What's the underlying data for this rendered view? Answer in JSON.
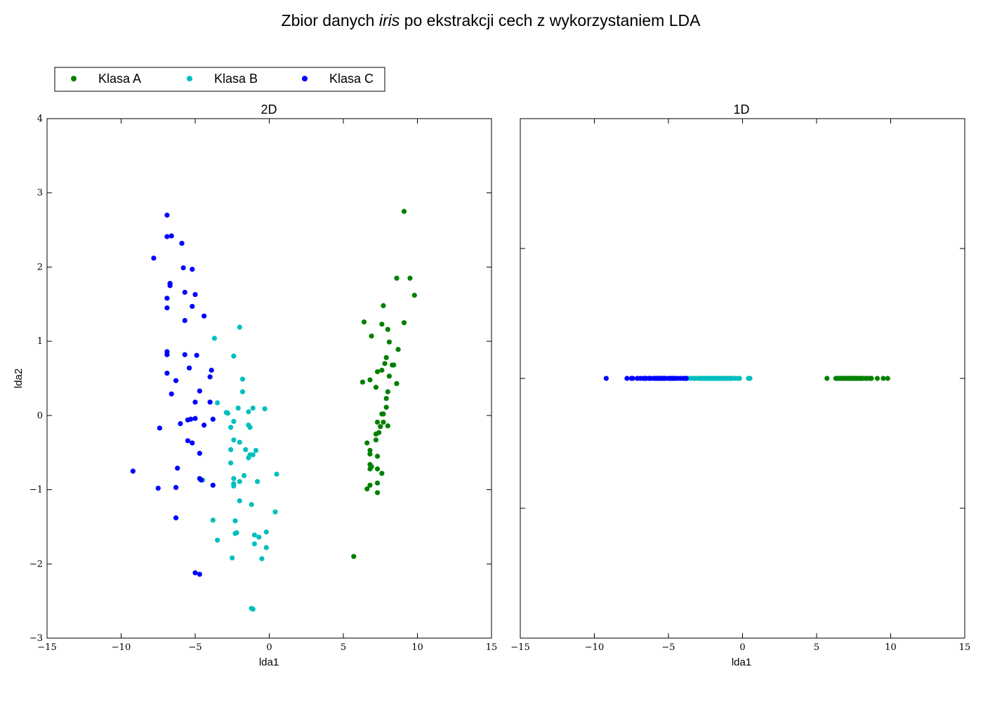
{
  "figure": {
    "title_prefix": "Zbior danych ",
    "title_italic": "iris",
    "title_suffix": " po ekstrakcji cech z wykorzystaniem LDA"
  },
  "legend": {
    "placement": "top-left, above plots",
    "entries": [
      {
        "label": "Klasa A",
        "color": "#008000"
      },
      {
        "label": "Klasa B",
        "color": "#00bfbf"
      },
      {
        "label": "Klasa C",
        "color": "#0000ff"
      }
    ]
  },
  "chart_data": [
    {
      "type": "scatter",
      "title": "2D",
      "xlabel": "lda1",
      "ylabel": "lda2",
      "xlim": [
        -15,
        15
      ],
      "ylim": [
        -3,
        4
      ],
      "xticks": [
        -15,
        -10,
        -5,
        0,
        5,
        10,
        15
      ],
      "yticks": [
        -3,
        -2,
        -1,
        0,
        1,
        2,
        3,
        4
      ],
      "grid": false,
      "series": [
        {
          "name": "Klasa A",
          "color": "#008000",
          "points": [
            [
              9.1,
              2.75
            ],
            [
              9.5,
              1.85
            ],
            [
              8.6,
              1.85
            ],
            [
              9.8,
              1.62
            ],
            [
              7.7,
              1.48
            ],
            [
              6.4,
              1.26
            ],
            [
              7.6,
              1.23
            ],
            [
              9.1,
              1.25
            ],
            [
              8.0,
              1.16
            ],
            [
              6.9,
              1.07
            ],
            [
              8.1,
              0.99
            ],
            [
              8.7,
              0.89
            ],
            [
              7.9,
              0.78
            ],
            [
              7.8,
              0.7
            ],
            [
              8.4,
              0.68
            ],
            [
              8.3,
              0.68
            ],
            [
              7.6,
              0.61
            ],
            [
              7.3,
              0.59
            ],
            [
              8.1,
              0.53
            ],
            [
              6.3,
              0.45
            ],
            [
              6.8,
              0.48
            ],
            [
              8.6,
              0.43
            ],
            [
              7.2,
              0.38
            ],
            [
              8.0,
              0.32
            ],
            [
              7.9,
              0.23
            ],
            [
              7.9,
              0.11
            ],
            [
              7.7,
              0.02
            ],
            [
              7.6,
              0.02
            ],
            [
              7.3,
              -0.09
            ],
            [
              7.7,
              -0.09
            ],
            [
              7.5,
              -0.15
            ],
            [
              8.0,
              -0.14
            ],
            [
              7.4,
              -0.23
            ],
            [
              7.2,
              -0.25
            ],
            [
              7.2,
              -0.33
            ],
            [
              6.6,
              -0.37
            ],
            [
              6.8,
              -0.47
            ],
            [
              6.8,
              -0.52
            ],
            [
              7.3,
              -0.55
            ],
            [
              6.8,
              -0.66
            ],
            [
              6.9,
              -0.69
            ],
            [
              6.8,
              -0.72
            ],
            [
              7.3,
              -0.72
            ],
            [
              7.6,
              -0.78
            ],
            [
              7.3,
              -0.91
            ],
            [
              6.8,
              -0.94
            ],
            [
              6.6,
              -0.99
            ],
            [
              7.3,
              -1.04
            ],
            [
              5.7,
              -1.9
            ]
          ]
        },
        {
          "name": "Klasa B",
          "color": "#00bfbf",
          "points": [
            [
              -2.0,
              1.19
            ],
            [
              -3.7,
              1.04
            ],
            [
              -2.4,
              0.8
            ],
            [
              -1.8,
              0.49
            ],
            [
              -1.8,
              0.32
            ],
            [
              -3.5,
              0.17
            ],
            [
              -2.1,
              0.1
            ],
            [
              -1.1,
              0.1
            ],
            [
              -0.3,
              0.09
            ],
            [
              -1.4,
              0.05
            ],
            [
              -2.9,
              0.04
            ],
            [
              -2.8,
              0.03
            ],
            [
              -2.4,
              -0.08
            ],
            [
              -1.4,
              -0.13
            ],
            [
              -2.6,
              -0.16
            ],
            [
              -1.3,
              -0.16
            ],
            [
              -2.4,
              -0.33
            ],
            [
              -2.0,
              -0.36
            ],
            [
              -2.6,
              -0.46
            ],
            [
              -1.6,
              -0.46
            ],
            [
              -0.9,
              -0.47
            ],
            [
              -1.3,
              -0.53
            ],
            [
              -1.1,
              -0.53
            ],
            [
              -1.4,
              -0.57
            ],
            [
              -2.6,
              -0.64
            ],
            [
              0.5,
              -0.79
            ],
            [
              -1.7,
              -0.81
            ],
            [
              -2.4,
              -0.85
            ],
            [
              -4.5,
              -0.87
            ],
            [
              -2.0,
              -0.89
            ],
            [
              -0.8,
              -0.89
            ],
            [
              -2.4,
              -0.92
            ],
            [
              -2.4,
              -0.95
            ],
            [
              -2.0,
              -1.15
            ],
            [
              -1.2,
              -1.2
            ],
            [
              0.4,
              -1.3
            ],
            [
              -3.8,
              -1.41
            ],
            [
              -2.3,
              -1.42
            ],
            [
              -0.2,
              -1.57
            ],
            [
              -2.2,
              -1.58
            ],
            [
              -2.3,
              -1.59
            ],
            [
              -1.0,
              -1.61
            ],
            [
              -0.7,
              -1.64
            ],
            [
              -3.5,
              -1.68
            ],
            [
              -1.0,
              -1.73
            ],
            [
              -0.2,
              -1.78
            ],
            [
              -2.5,
              -1.92
            ],
            [
              -0.5,
              -1.93
            ],
            [
              -1.2,
              -2.6
            ],
            [
              -1.1,
              -2.61
            ]
          ]
        },
        {
          "name": "Klasa C",
          "color": "#0000ff",
          "points": [
            [
              -6.9,
              2.7
            ],
            [
              -6.9,
              2.41
            ],
            [
              -6.6,
              2.42
            ],
            [
              -5.9,
              2.32
            ],
            [
              -7.8,
              2.12
            ],
            [
              -5.8,
              1.99
            ],
            [
              -5.2,
              1.97
            ],
            [
              -6.7,
              1.78
            ],
            [
              -6.7,
              1.75
            ],
            [
              -5.7,
              1.66
            ],
            [
              -5.0,
              1.63
            ],
            [
              -6.9,
              1.58
            ],
            [
              -5.2,
              1.47
            ],
            [
              -6.9,
              1.45
            ],
            [
              -4.4,
              1.34
            ],
            [
              -5.7,
              1.28
            ],
            [
              -6.9,
              0.86
            ],
            [
              -6.9,
              0.82
            ],
            [
              -5.7,
              0.82
            ],
            [
              -4.9,
              0.81
            ],
            [
              -3.9,
              0.61
            ],
            [
              -5.4,
              0.64
            ],
            [
              -6.9,
              0.57
            ],
            [
              -4.0,
              0.52
            ],
            [
              -6.3,
              0.47
            ],
            [
              -4.7,
              0.33
            ],
            [
              -6.6,
              0.29
            ],
            [
              -5.0,
              0.18
            ],
            [
              -4.0,
              0.18
            ],
            [
              -3.8,
              -0.05
            ],
            [
              -5.0,
              -0.04
            ],
            [
              -5.3,
              -0.05
            ],
            [
              -5.5,
              -0.06
            ],
            [
              -6.0,
              -0.11
            ],
            [
              -4.4,
              -0.13
            ],
            [
              -7.4,
              -0.17
            ],
            [
              -5.5,
              -0.34
            ],
            [
              -5.2,
              -0.37
            ],
            [
              -4.7,
              -0.51
            ],
            [
              -6.2,
              -0.71
            ],
            [
              -9.2,
              -0.75
            ],
            [
              -4.7,
              -0.85
            ],
            [
              -4.6,
              -0.87
            ],
            [
              -3.8,
              -0.94
            ],
            [
              -6.3,
              -0.97
            ],
            [
              -7.5,
              -0.98
            ],
            [
              -6.3,
              -1.38
            ],
            [
              -5.0,
              -2.12
            ],
            [
              -4.7,
              -2.14
            ]
          ]
        }
      ]
    },
    {
      "type": "scatter",
      "title": "1D",
      "xlabel": "lda1",
      "ylabel": "",
      "xlim": [
        -15,
        15
      ],
      "ylim": [
        -1,
        1
      ],
      "xticks": [
        -15,
        -10,
        -5,
        0,
        5,
        10,
        15
      ],
      "yticks": [
        -1,
        -0.5,
        0,
        0.5,
        1
      ],
      "ytick_labels_visible": false,
      "constant_y": 0,
      "grid": false,
      "series": [
        {
          "name": "Klasa A",
          "color": "#008000",
          "x": [
            9.8,
            9.5,
            9.1,
            8.6,
            8.6,
            8.7,
            8.4,
            8.3,
            8.1,
            8.1,
            8.0,
            8.0,
            7.9,
            7.9,
            7.8,
            7.7,
            7.7,
            7.6,
            7.6,
            7.6,
            7.5,
            7.4,
            7.3,
            7.3,
            7.3,
            7.3,
            7.3,
            7.2,
            7.2,
            6.9,
            6.9,
            6.8,
            6.8,
            6.8,
            6.8,
            6.8,
            6.6,
            6.6,
            6.4,
            6.3,
            5.7,
            7.0,
            7.1,
            6.5,
            6.7
          ]
        },
        {
          "name": "Klasa B",
          "color": "#00bfbf",
          "x": [
            0.5,
            0.4,
            -0.2,
            -0.3,
            -0.5,
            -0.7,
            -0.8,
            -0.9,
            -1.0,
            -1.1,
            -1.2,
            -1.3,
            -1.4,
            -1.6,
            -1.7,
            -1.8,
            -2.0,
            -2.1,
            -2.2,
            -2.3,
            -2.4,
            -2.5,
            -2.6,
            -2.8,
            -2.9,
            -3.5,
            -3.7,
            -3.8,
            -4.5,
            -3.2,
            -3.0,
            -1.5,
            -1.9,
            -2.7,
            -3.3
          ]
        },
        {
          "name": "Klasa C",
          "color": "#0000ff",
          "x": [
            -9.2,
            -7.8,
            -7.5,
            -7.4,
            -6.9,
            -6.7,
            -6.6,
            -6.3,
            -6.2,
            -6.0,
            -5.9,
            -5.8,
            -5.7,
            -5.5,
            -5.4,
            -5.3,
            -5.2,
            -5.0,
            -4.9,
            -4.7,
            -4.6,
            -4.4,
            -4.0,
            -3.9,
            -3.8,
            -7.1,
            -6.5,
            -5.6,
            -4.2,
            -4.8
          ]
        }
      ]
    }
  ]
}
